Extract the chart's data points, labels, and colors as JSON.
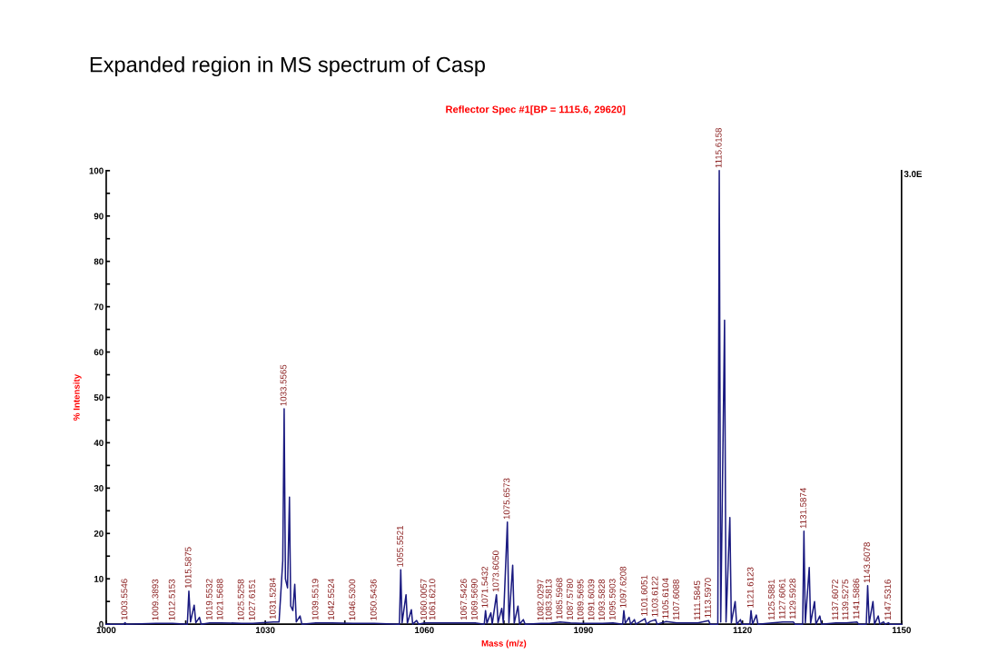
{
  "chart_data": {
    "type": "line",
    "title": "Expanded region in MS spectrum of Casp",
    "subtitle": "Reflector Spec #1[BP = 1115.6, 29620]",
    "xlabel": "Mass (m/z)",
    "ylabel": "% Intensity",
    "xlim": [
      1000,
      1150
    ],
    "ylim": [
      0,
      100
    ],
    "xticks": [
      1000,
      {
        "value": 1015,
        "label": null
      },
      1030,
      {
        "value": 1045,
        "label": null
      },
      1060,
      {
        "value": 1075,
        "label": null
      },
      1090,
      {
        "value": 1105,
        "label": null
      },
      1120,
      {
        "value": 1135,
        "label": null
      },
      1150
    ],
    "yticks": [
      0,
      {
        "value": 5,
        "label": null
      },
      10,
      {
        "value": 15,
        "label": null
      },
      20,
      {
        "value": 25,
        "label": null
      },
      30,
      {
        "value": 35,
        "label": null
      },
      40,
      {
        "value": 45,
        "label": null
      },
      50,
      {
        "value": 55,
        "label": null
      },
      60,
      {
        "value": 65,
        "label": null
      },
      70,
      {
        "value": 75,
        "label": null
      },
      80,
      {
        "value": 85,
        "label": null
      },
      90,
      {
        "value": 95,
        "label": null
      },
      100
    ],
    "grid": false,
    "marker": "none",
    "line_style": "solid",
    "series": [
      {
        "color": "#1a1a80",
        "x": [
          1000,
          1003.3,
          1003.55,
          1003.8,
          1009.39,
          1012.52,
          1015.3,
          1015.59,
          1015.9,
          1016.59,
          1016.9,
          1017.59,
          1017.9,
          1019.55,
          1021.57,
          1025.53,
          1027.62,
          1031.53,
          1032.6,
          1033.3,
          1033.56,
          1033.8,
          1034.2,
          1034.56,
          1034.8,
          1035.2,
          1035.56,
          1035.85,
          1036.56,
          1036.9,
          1039.55,
          1042.55,
          1046.53,
          1050.54,
          1055.3,
          1055.55,
          1055.8,
          1056.55,
          1056.8,
          1057.55,
          1057.8,
          1058.55,
          1058.9,
          1060.01,
          1061.62,
          1067.54,
          1069.57,
          1071.3,
          1071.54,
          1071.8,
          1072.54,
          1072.8,
          1073.6,
          1073.9,
          1074.6,
          1074.9,
          1075.66,
          1075.95,
          1076.66,
          1076.95,
          1077.66,
          1077.95,
          1078.66,
          1079,
          1082.03,
          1083.58,
          1085.6,
          1087.58,
          1089.57,
          1091.6,
          1093.58,
          1095.59,
          1097.4,
          1097.62,
          1097.9,
          1098.62,
          1098.9,
          1099.62,
          1099.9,
          1101.61,
          1101.9,
          1102.6,
          1103.61,
          1103.9,
          1105.61,
          1107.61,
          1111.58,
          1113.6,
          1113.9,
          1115.35,
          1115.62,
          1115.9,
          1116.62,
          1116.9,
          1117.62,
          1117.9,
          1118.62,
          1118.9,
          1119.62,
          1119.9,
          1121.4,
          1121.61,
          1121.9,
          1122.61,
          1122.9,
          1125.59,
          1127.61,
          1129.59,
          1129.9,
          1131.35,
          1131.59,
          1131.85,
          1132.59,
          1132.85,
          1133.59,
          1133.85,
          1134.59,
          1134.9,
          1137.61,
          1139.53,
          1141.59,
          1141.9,
          1143.35,
          1143.61,
          1143.9,
          1144.61,
          1144.9,
          1145.61,
          1145.9,
          1146.6,
          1146.9,
          1147.53,
          1147.8,
          1150
        ],
        "values": [
          0,
          0,
          0.3,
          0,
          0.2,
          0.2,
          0,
          7.3,
          0.5,
          4.2,
          0.3,
          1.5,
          0,
          0.3,
          0.3,
          0.2,
          0.2,
          0.5,
          0.5,
          14,
          47.5,
          10,
          8,
          28,
          4,
          3,
          8.8,
          0.5,
          1.8,
          0,
          0.3,
          0.3,
          0.2,
          0.2,
          0,
          12,
          0.3,
          6.5,
          0.2,
          3.2,
          0,
          0.8,
          0,
          0.3,
          0.3,
          0.3,
          0.3,
          0,
          3,
          0.2,
          2.5,
          0,
          6.5,
          0.3,
          3.5,
          0.3,
          22.5,
          0.3,
          13,
          0.2,
          4,
          0,
          1,
          0,
          0.2,
          0.2,
          0.5,
          0.3,
          0.2,
          0.2,
          0.2,
          0.3,
          0,
          3,
          0.2,
          1.5,
          0,
          1,
          0,
          1.2,
          0,
          0.6,
          1,
          0,
          0.6,
          0.3,
          0.3,
          0.8,
          0,
          0,
          100,
          0.5,
          67,
          0.5,
          23.5,
          0.3,
          5,
          0,
          1,
          0,
          0,
          3,
          0,
          2,
          0,
          0.3,
          0.5,
          0.5,
          0,
          0,
          20.5,
          0.3,
          12.5,
          0.2,
          5,
          0,
          1.8,
          0,
          0.3,
          0.3,
          0.5,
          0,
          0,
          8.5,
          0.2,
          5,
          0,
          1.8,
          0,
          0.5,
          0,
          0.3,
          0,
          0
        ]
      }
    ],
    "annotations": [
      {
        "text": "1003.5546",
        "x": 1003.5546,
        "y": 0.3
      },
      {
        "text": "1009.3893",
        "x": 1009.3893,
        "y": 0.2
      },
      {
        "text": "1012.5153",
        "x": 1012.5153,
        "y": 0.2
      },
      {
        "text": "1015.5875",
        "x": 1015.5875,
        "y": 7.3
      },
      {
        "text": "1019.5532",
        "x": 1019.5532,
        "y": 0.3
      },
      {
        "text": "1021.5688",
        "x": 1021.5688,
        "y": 0.3
      },
      {
        "text": "1025.5258",
        "x": 1025.5258,
        "y": 0.2
      },
      {
        "text": "1027.6151",
        "x": 1027.6151,
        "y": 0.2
      },
      {
        "text": "1031.5284",
        "x": 1031.5284,
        "y": 0.5
      },
      {
        "text": "1033.5565",
        "x": 1033.5565,
        "y": 47.5
      },
      {
        "text": "1039.5519",
        "x": 1039.5519,
        "y": 0.3
      },
      {
        "text": "1042.5524",
        "x": 1042.5524,
        "y": 0.3
      },
      {
        "text": "1046.5300",
        "x": 1046.53,
        "y": 0.2
      },
      {
        "text": "1050.5436",
        "x": 1050.5436,
        "y": 0.2
      },
      {
        "text": "1055.5521",
        "x": 1055.5521,
        "y": 12
      },
      {
        "text": "1060.0057",
        "x": 1060.0057,
        "y": 0.3
      },
      {
        "text": "1061.6210",
        "x": 1061.621,
        "y": 0.3
      },
      {
        "text": "1067.5426",
        "x": 1067.5426,
        "y": 0.3
      },
      {
        "text": "1069.5690",
        "x": 1069.569,
        "y": 0.3
      },
      {
        "text": "1071.5432",
        "x": 1071.5432,
        "y": 3
      },
      {
        "text": "1073.6050",
        "x": 1073.605,
        "y": 6.5
      },
      {
        "text": "1075.6573",
        "x": 1075.6573,
        "y": 22.5
      },
      {
        "text": "1082.0297",
        "x": 1082.0297,
        "y": 0.2
      },
      {
        "text": "1083.5813",
        "x": 1083.5813,
        "y": 0.2
      },
      {
        "text": "1085.5968",
        "x": 1085.5968,
        "y": 0.5
      },
      {
        "text": "1087.5780",
        "x": 1087.578,
        "y": 0.3
      },
      {
        "text": "1089.5695",
        "x": 1089.5695,
        "y": 0.2
      },
      {
        "text": "1091.6039",
        "x": 1091.6039,
        "y": 0.2
      },
      {
        "text": "1093.5828",
        "x": 1093.5828,
        "y": 0.2
      },
      {
        "text": "1095.5903",
        "x": 1095.5903,
        "y": 0.3
      },
      {
        "text": "1097.6208",
        "x": 1097.6208,
        "y": 3
      },
      {
        "text": "1101.6051",
        "x": 1101.6051,
        "y": 1.2
      },
      {
        "text": "1103.6122",
        "x": 1103.6122,
        "y": 1
      },
      {
        "text": "1105.6104",
        "x": 1105.6104,
        "y": 0.6
      },
      {
        "text": "1107.6088",
        "x": 1107.6088,
        "y": 0.3
      },
      {
        "text": "1111.5845",
        "x": 1111.5845,
        "y": 0.3
      },
      {
        "text": "1113.5970",
        "x": 1113.597,
        "y": 0.8
      },
      {
        "text": "1115.6158",
        "x": 1115.6158,
        "y": 100
      },
      {
        "text": "1121.6123",
        "x": 1121.6123,
        "y": 3
      },
      {
        "text": "1125.5881",
        "x": 1125.5881,
        "y": 0.3
      },
      {
        "text": "1127.6061",
        "x": 1127.6061,
        "y": 0.5
      },
      {
        "text": "1129.5928",
        "x": 1129.5928,
        "y": 0.5
      },
      {
        "text": "1131.5874",
        "x": 1131.5874,
        "y": 20.5
      },
      {
        "text": "1137.6072",
        "x": 1137.6072,
        "y": 0.3
      },
      {
        "text": "1139.5275",
        "x": 1139.5275,
        "y": 0.3
      },
      {
        "text": "1141.5886",
        "x": 1141.5886,
        "y": 0.5
      },
      {
        "text": "1143.6078",
        "x": 1143.6078,
        "y": 8.5
      },
      {
        "text": "1147.5316",
        "x": 1147.5316,
        "y": 0.3
      },
      "3.0E"
    ]
  }
}
